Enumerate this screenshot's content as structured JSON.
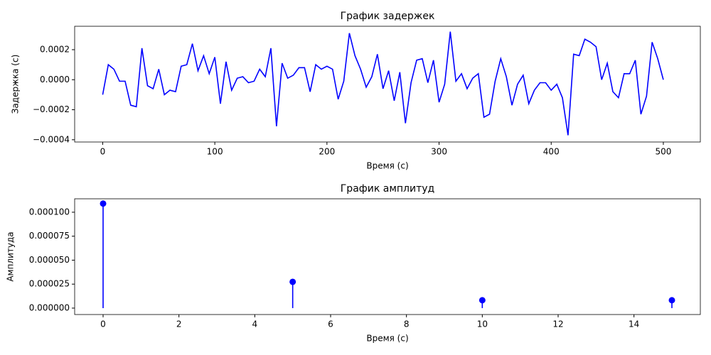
{
  "chart_data": [
    {
      "type": "line",
      "title": "График задержек",
      "x_label": "Время (с)",
      "y_label": "Задержка (с)",
      "color": "#0000ff",
      "x": [
        0,
        5,
        10,
        15,
        20,
        25,
        30,
        35,
        40,
        45,
        50,
        55,
        60,
        65,
        70,
        75,
        80,
        85,
        90,
        95,
        100,
        105,
        110,
        115,
        120,
        125,
        130,
        135,
        140,
        145,
        150,
        155,
        160,
        165,
        170,
        175,
        180,
        185,
        190,
        195,
        200,
        205,
        210,
        215,
        220,
        225,
        230,
        235,
        240,
        245,
        250,
        255,
        260,
        265,
        270,
        275,
        280,
        285,
        290,
        295,
        300,
        305,
        310,
        315,
        320,
        325,
        330,
        335,
        340,
        345,
        350,
        355,
        360,
        365,
        370,
        375,
        380,
        385,
        390,
        395,
        400,
        405,
        410,
        415,
        420,
        425,
        430,
        435,
        440,
        445,
        450,
        455,
        460,
        465,
        470,
        475,
        480,
        485,
        490,
        495,
        500
      ],
      "values": [
        -0.0001,
        0.0001,
        7e-05,
        -1e-05,
        -1e-05,
        -0.00017,
        -0.00018,
        0.00021,
        -4e-05,
        -6e-05,
        7e-05,
        -0.0001,
        -7e-05,
        -8e-05,
        9e-05,
        0.0001,
        0.00024,
        6e-05,
        0.00016,
        4e-05,
        0.00015,
        -0.00016,
        0.00012,
        -7e-05,
        1e-05,
        2e-05,
        -2e-05,
        -1e-05,
        7e-05,
        2e-05,
        0.00021,
        -0.00031,
        0.00011,
        1e-05,
        3e-05,
        8e-05,
        8e-05,
        -8e-05,
        0.0001,
        7e-05,
        9e-05,
        7e-05,
        -0.00013,
        -1e-05,
        0.00031,
        0.00016,
        7e-05,
        -5e-05,
        2e-05,
        0.00017,
        -6e-05,
        6e-05,
        -0.00014,
        5e-05,
        -0.00029,
        -2e-05,
        0.00013,
        0.00014,
        -2e-05,
        0.00013,
        -0.00015,
        -3e-05,
        0.00032,
        -1e-05,
        4e-05,
        -6e-05,
        1e-05,
        4e-05,
        -0.00025,
        -0.00023,
        -1e-05,
        0.00014,
        2e-05,
        -0.00017,
        -3e-05,
        3e-05,
        -0.00016,
        -7e-05,
        -2e-05,
        -2e-05,
        -7e-05,
        -3e-05,
        -0.00012,
        -0.00037,
        0.00017,
        0.00016,
        0.00027,
        0.00025,
        0.00022,
        0.0,
        0.00011,
        -8e-05,
        -0.00012,
        4e-05,
        4e-05,
        0.00013,
        -0.00023,
        -0.00011,
        0.00025,
        0.00014,
        0.0
      ],
      "xlim": [
        -25,
        533
      ],
      "xticks": [
        0,
        100,
        200,
        300,
        400,
        500
      ],
      "ylim": [
        -0.000415,
        0.000356
      ],
      "yticks": [
        {
          "value": -0.0004,
          "label": "−0.0004"
        },
        {
          "value": -0.0002,
          "label": "−0.0002"
        },
        {
          "value": 0,
          "label": "0.0000"
        },
        {
          "value": 0.0002,
          "label": "0.0002"
        }
      ]
    },
    {
      "type": "stem",
      "title": "График амплитуд",
      "x_label": "Время (с)",
      "y_label": "Амплитуда",
      "color": "#0000ff",
      "x": [
        0,
        5,
        10,
        15
      ],
      "values": [
        0.000109,
        2.74e-05,
        8.2e-06,
        8.2e-06
      ],
      "xlim": [
        -0.75,
        15.75
      ],
      "xticks": [
        0,
        2,
        4,
        6,
        8,
        10,
        12,
        14
      ],
      "ylim": [
        -6.7e-06,
        0.000114
      ],
      "yticks": [
        {
          "value": 0,
          "label": "0.000000"
        },
        {
          "value": 2.5e-05,
          "label": "0.000025"
        },
        {
          "value": 5e-05,
          "label": "0.000050"
        },
        {
          "value": 7.5e-05,
          "label": "0.000075"
        },
        {
          "value": 0.0001,
          "label": "0.000100"
        }
      ]
    }
  ]
}
